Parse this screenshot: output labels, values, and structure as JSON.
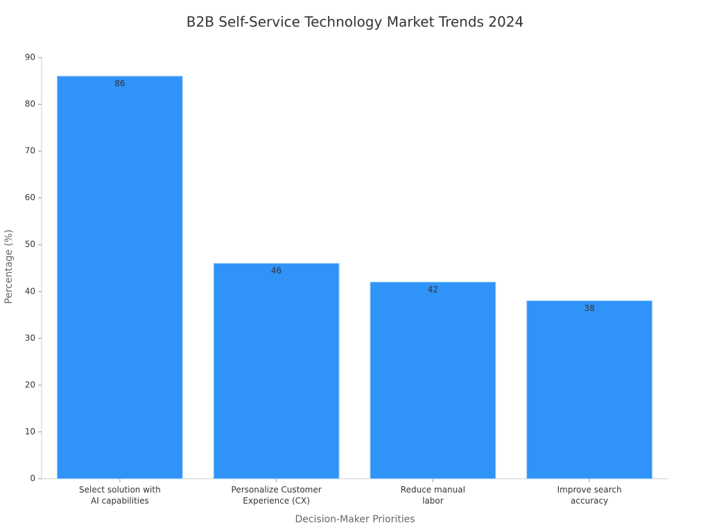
{
  "chart_data": {
    "type": "bar",
    "title": "B2B Self-Service Technology Market Trends 2024",
    "x_label": "Decision-Maker Priorities",
    "y_label": "Percentage (%)",
    "categories": [
      "Select solution with\nAI capabilities",
      "Personalize Customer\nExperience (CX)",
      "Reduce manual\nlabor",
      "Improve search\naccuracy"
    ],
    "values": [
      86,
      46,
      42,
      38
    ],
    "color": "#2f93f7",
    "ylim": [
      0,
      90
    ],
    "yticks": [
      0,
      10,
      20,
      30,
      40,
      50,
      60,
      70,
      80,
      90
    ],
    "grid": false
  }
}
